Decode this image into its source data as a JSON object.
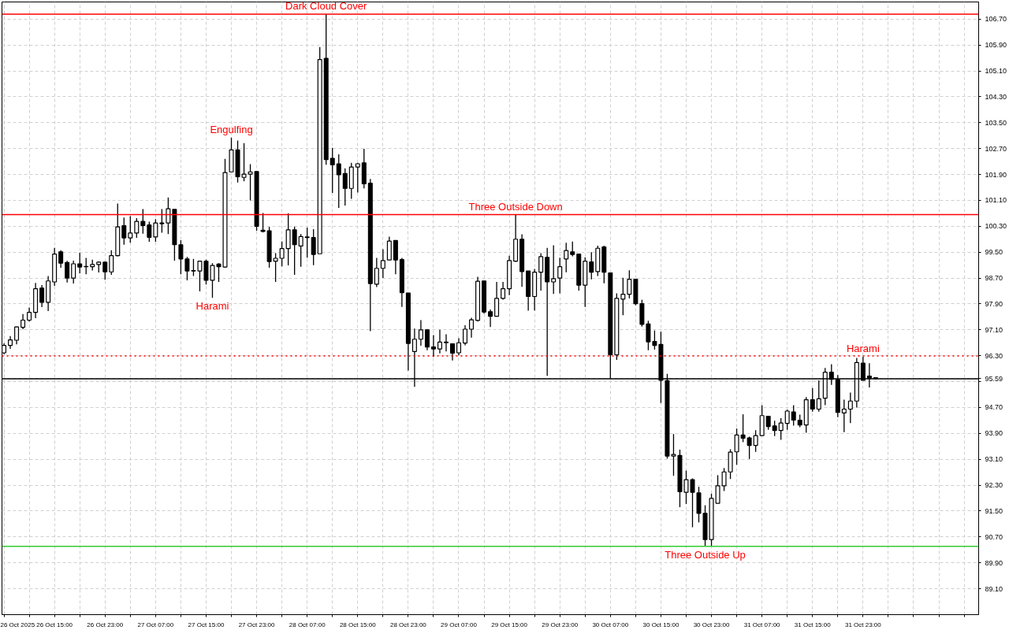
{
  "chart_data": {
    "type": "candlestick",
    "x": [
      "2025-10-26T07:00",
      "2025-10-26T08:00",
      "2025-10-26T09:00",
      "2025-10-26T10:00",
      "2025-10-26T11:00",
      "2025-10-26T12:00",
      "2025-10-26T13:00",
      "2025-10-26T14:00",
      "2025-10-26T15:00",
      "2025-10-26T16:00",
      "2025-10-26T17:00",
      "2025-10-26T18:00",
      "2025-10-26T19:00",
      "2025-10-26T20:00",
      "2025-10-26T21:00",
      "2025-10-26T22:00",
      "2025-10-26T23:00",
      "2025-10-27T00:00",
      "2025-10-27T01:00",
      "2025-10-27T02:00",
      "2025-10-27T03:00",
      "2025-10-27T04:00",
      "2025-10-27T05:00",
      "2025-10-27T06:00",
      "2025-10-27T07:00",
      "2025-10-27T08:00",
      "2025-10-27T09:00",
      "2025-10-27T10:00",
      "2025-10-27T11:00",
      "2025-10-27T12:00",
      "2025-10-27T13:00",
      "2025-10-27T14:00",
      "2025-10-27T15:00",
      "2025-10-27T16:00",
      "2025-10-27T17:00",
      "2025-10-27T18:00",
      "2025-10-27T19:00",
      "2025-10-27T20:00",
      "2025-10-27T21:00",
      "2025-10-27T22:00",
      "2025-10-27T23:00",
      "2025-10-28T00:00",
      "2025-10-28T01:00",
      "2025-10-28T02:00",
      "2025-10-28T03:00",
      "2025-10-28T04:00",
      "2025-10-28T05:00",
      "2025-10-28T06:00",
      "2025-10-28T07:00",
      "2025-10-28T08:00",
      "2025-10-28T09:00",
      "2025-10-28T10:00",
      "2025-10-28T11:00",
      "2025-10-28T12:00",
      "2025-10-28T13:00",
      "2025-10-28T14:00",
      "2025-10-28T15:00",
      "2025-10-28T16:00",
      "2025-10-28T17:00",
      "2025-10-28T18:00",
      "2025-10-28T19:00",
      "2025-10-28T20:00",
      "2025-10-28T21:00",
      "2025-10-28T22:00",
      "2025-10-28T23:00",
      "2025-10-29T00:00",
      "2025-10-29T01:00",
      "2025-10-29T02:00",
      "2025-10-29T03:00",
      "2025-10-29T04:00",
      "2025-10-29T05:00",
      "2025-10-29T06:00",
      "2025-10-29T07:00",
      "2025-10-29T08:00",
      "2025-10-29T09:00",
      "2025-10-29T10:00",
      "2025-10-29T11:00",
      "2025-10-29T12:00",
      "2025-10-29T13:00",
      "2025-10-29T14:00",
      "2025-10-29T15:00",
      "2025-10-29T16:00",
      "2025-10-29T17:00",
      "2025-10-29T18:00",
      "2025-10-29T19:00",
      "2025-10-29T20:00",
      "2025-10-29T21:00",
      "2025-10-29T22:00",
      "2025-10-29T23:00",
      "2025-10-30T00:00",
      "2025-10-30T01:00",
      "2025-10-30T02:00",
      "2025-10-30T03:00",
      "2025-10-30T04:00",
      "2025-10-30T05:00",
      "2025-10-30T06:00",
      "2025-10-30T07:00",
      "2025-10-30T08:00",
      "2025-10-30T09:00",
      "2025-10-30T10:00",
      "2025-10-30T11:00",
      "2025-10-30T12:00",
      "2025-10-30T13:00",
      "2025-10-30T14:00",
      "2025-10-30T15:00",
      "2025-10-30T16:00",
      "2025-10-30T17:00",
      "2025-10-30T18:00",
      "2025-10-30T19:00",
      "2025-10-30T20:00",
      "2025-10-30T21:00",
      "2025-10-30T22:00",
      "2025-10-30T23:00",
      "2025-10-31T00:00",
      "2025-10-31T01:00",
      "2025-10-31T02:00",
      "2025-10-31T03:00",
      "2025-10-31T04:00",
      "2025-10-31T05:00",
      "2025-10-31T06:00",
      "2025-10-31T07:00",
      "2025-10-31T08:00",
      "2025-10-31T09:00",
      "2025-10-31T10:00",
      "2025-10-31T11:00",
      "2025-10-31T12:00",
      "2025-10-31T13:00",
      "2025-10-31T14:00",
      "2025-10-31T15:00",
      "2025-10-31T16:00",
      "2025-10-31T17:00",
      "2025-10-31T18:00",
      "2025-10-31T19:00",
      "2025-10-31T20:00",
      "2025-10-31T21:00",
      "2025-10-31T22:00",
      "2025-10-31T23:00",
      "2025-11-01T00:00",
      "2025-11-01T01:00"
    ],
    "ohlc": [
      [
        96.39,
        96.68,
        96.35,
        96.62
      ],
      [
        96.62,
        96.91,
        96.51,
        96.79
      ],
      [
        96.78,
        97.2,
        96.65,
        97.19
      ],
      [
        97.18,
        97.59,
        97.12,
        97.4
      ],
      [
        97.4,
        97.79,
        97.36,
        97.64
      ],
      [
        97.64,
        98.55,
        97.46,
        98.37
      ],
      [
        98.39,
        98.48,
        97.8,
        97.95
      ],
      [
        97.95,
        98.76,
        97.68,
        98.61
      ],
      [
        98.58,
        99.63,
        98.46,
        99.44
      ],
      [
        99.51,
        99.56,
        99.02,
        99.16
      ],
      [
        99.18,
        99.23,
        98.56,
        98.7
      ],
      [
        98.7,
        99.24,
        98.53,
        99.14
      ],
      [
        99.14,
        99.48,
        98.84,
        99.04
      ],
      [
        99.05,
        99.32,
        98.82,
        99.06
      ],
      [
        99.05,
        99.27,
        98.93,
        99.12
      ],
      [
        99.12,
        99.21,
        98.87,
        99.19
      ],
      [
        99.19,
        99.21,
        98.65,
        98.89
      ],
      [
        98.89,
        99.56,
        98.8,
        99.39
      ],
      [
        99.39,
        101.0,
        99.37,
        100.28
      ],
      [
        100.32,
        100.57,
        99.73,
        99.94
      ],
      [
        99.94,
        100.61,
        99.79,
        100.09
      ],
      [
        100.09,
        100.55,
        99.94,
        100.45
      ],
      [
        100.45,
        100.83,
        100.07,
        100.32
      ],
      [
        100.34,
        100.44,
        99.82,
        99.96
      ],
      [
        99.97,
        100.52,
        99.82,
        100.4
      ],
      [
        100.38,
        100.83,
        100.1,
        100.4
      ],
      [
        100.4,
        101.19,
        100.06,
        100.84
      ],
      [
        100.82,
        100.82,
        99.24,
        99.73
      ],
      [
        99.73,
        99.87,
        98.82,
        99.29
      ],
      [
        99.29,
        99.35,
        98.63,
        98.92
      ],
      [
        98.92,
        99.29,
        98.76,
        98.93
      ],
      [
        98.92,
        99.22,
        98.29,
        99.22
      ],
      [
        99.22,
        99.27,
        98.5,
        98.63
      ],
      [
        98.63,
        99.16,
        98.09,
        99.09
      ],
      [
        99.13,
        99.16,
        98.58,
        99.05
      ],
      [
        99.04,
        102.38,
        99.02,
        101.96
      ],
      [
        101.98,
        103.04,
        101.98,
        102.66
      ],
      [
        102.66,
        102.95,
        101.65,
        101.83
      ],
      [
        101.81,
        102.87,
        101.69,
        101.91
      ],
      [
        101.91,
        102.22,
        101.1,
        101.98
      ],
      [
        101.99,
        101.99,
        100.16,
        100.3
      ],
      [
        100.18,
        100.71,
        100.11,
        100.14
      ],
      [
        100.16,
        100.28,
        99.02,
        99.21
      ],
      [
        99.22,
        99.47,
        98.58,
        99.31
      ],
      [
        99.31,
        99.83,
        99.06,
        99.61
      ],
      [
        99.61,
        100.7,
        99.09,
        100.19
      ],
      [
        100.19,
        100.29,
        98.8,
        99.73
      ],
      [
        99.69,
        100.06,
        99.05,
        99.98
      ],
      [
        99.95,
        100.26,
        99.33,
        99.97
      ],
      [
        99.95,
        100.21,
        99.1,
        99.43
      ],
      [
        99.45,
        105.84,
        99.45,
        105.45
      ],
      [
        105.49,
        106.85,
        102.2,
        102.36
      ],
      [
        102.4,
        102.72,
        101.33,
        102.2
      ],
      [
        102.23,
        102.52,
        100.87,
        101.89
      ],
      [
        101.93,
        102.09,
        100.94,
        101.47
      ],
      [
        101.47,
        102.26,
        101.15,
        102.13
      ],
      [
        102.13,
        102.26,
        101.34,
        102.23
      ],
      [
        102.26,
        102.69,
        101.47,
        101.61
      ],
      [
        101.63,
        101.76,
        97.06,
        98.53
      ],
      [
        98.51,
        99.32,
        98.42,
        99.0
      ],
      [
        99.0,
        99.59,
        98.7,
        99.24
      ],
      [
        99.26,
        99.98,
        99.26,
        99.84
      ],
      [
        99.86,
        99.86,
        98.82,
        99.26
      ],
      [
        99.27,
        99.32,
        97.81,
        98.25
      ],
      [
        98.24,
        98.24,
        95.84,
        96.68
      ],
      [
        96.43,
        97.14,
        95.34,
        96.81
      ],
      [
        96.81,
        97.4,
        96.61,
        97.1
      ],
      [
        97.1,
        97.12,
        96.47,
        96.57
      ],
      [
        96.57,
        96.94,
        96.26,
        96.51
      ],
      [
        96.51,
        97.1,
        96.37,
        96.72
      ],
      [
        96.7,
        96.96,
        96.43,
        96.72
      ],
      [
        96.67,
        96.67,
        96.15,
        96.38
      ],
      [
        96.39,
        96.84,
        96.31,
        96.7
      ],
      [
        96.69,
        97.24,
        96.62,
        97.12
      ],
      [
        97.12,
        97.47,
        96.86,
        97.41
      ],
      [
        97.39,
        98.74,
        97.36,
        98.6
      ],
      [
        98.61,
        98.61,
        97.6,
        97.65
      ],
      [
        97.66,
        97.73,
        97.19,
        97.52
      ],
      [
        97.52,
        98.58,
        97.52,
        98.07
      ],
      [
        98.07,
        98.58,
        98.03,
        98.37
      ],
      [
        98.37,
        99.39,
        98.17,
        99.24
      ],
      [
        99.22,
        100.66,
        99.2,
        99.9
      ],
      [
        99.9,
        100.05,
        98.43,
        98.9
      ],
      [
        98.92,
        98.92,
        97.69,
        98.13
      ],
      [
        98.13,
        98.98,
        97.7,
        98.88
      ],
      [
        98.88,
        99.47,
        98.31,
        99.36
      ],
      [
        99.34,
        99.63,
        95.68,
        98.58
      ],
      [
        98.58,
        99.71,
        98.21,
        98.68
      ],
      [
        98.7,
        99.33,
        98.23,
        99.05
      ],
      [
        99.29,
        99.79,
        98.88,
        99.55
      ],
      [
        99.51,
        99.83,
        99.37,
        99.43
      ],
      [
        99.44,
        99.44,
        98.31,
        98.48
      ],
      [
        98.48,
        99.34,
        97.81,
        99.22
      ],
      [
        99.2,
        99.5,
        98.66,
        98.88
      ],
      [
        98.9,
        99.7,
        98.76,
        99.62
      ],
      [
        99.66,
        99.7,
        98.54,
        98.88
      ],
      [
        98.86,
        98.86,
        95.6,
        96.33
      ],
      [
        96.33,
        98.23,
        96.17,
        98.07
      ],
      [
        98.05,
        98.71,
        97.55,
        98.2
      ],
      [
        98.2,
        98.94,
        98.07,
        98.66
      ],
      [
        98.66,
        98.66,
        97.86,
        97.91
      ],
      [
        97.91,
        98.03,
        97.2,
        97.27
      ],
      [
        97.28,
        97.38,
        96.47,
        96.73
      ],
      [
        96.74,
        97.08,
        96.49,
        96.62
      ],
      [
        96.65,
        97.04,
        94.84,
        95.54
      ],
      [
        95.53,
        95.74,
        93.12,
        93.2
      ],
      [
        93.2,
        93.88,
        92.59,
        93.25
      ],
      [
        93.22,
        93.4,
        91.62,
        92.1
      ],
      [
        92.08,
        92.75,
        91.72,
        92.47
      ],
      [
        92.47,
        92.51,
        91.0,
        92.08
      ],
      [
        92.06,
        92.25,
        91.15,
        91.43
      ],
      [
        91.43,
        91.68,
        90.41,
        90.62
      ],
      [
        90.62,
        92.04,
        90.41,
        91.89
      ],
      [
        91.74,
        92.61,
        91.74,
        92.28
      ],
      [
        92.28,
        92.83,
        92.12,
        92.71
      ],
      [
        92.71,
        93.41,
        92.49,
        93.32
      ],
      [
        93.33,
        94.05,
        92.93,
        93.85
      ],
      [
        93.85,
        94.49,
        93.63,
        93.75
      ],
      [
        93.76,
        93.8,
        93.11,
        93.53
      ],
      [
        93.53,
        94.0,
        93.33,
        93.83
      ],
      [
        93.83,
        94.77,
        93.83,
        94.45
      ],
      [
        94.43,
        94.43,
        94.01,
        94.11
      ],
      [
        94.13,
        94.29,
        93.82,
        93.99
      ],
      [
        93.99,
        94.37,
        93.7,
        94.22
      ],
      [
        94.21,
        94.63,
        94.01,
        94.59
      ],
      [
        94.56,
        94.77,
        94.14,
        94.31
      ],
      [
        94.31,
        94.48,
        94.09,
        94.16
      ],
      [
        94.16,
        95.02,
        93.92,
        94.94
      ],
      [
        94.94,
        95.3,
        94.57,
        94.65
      ],
      [
        94.65,
        95.54,
        94.57,
        94.97
      ],
      [
        94.99,
        95.92,
        94.77,
        95.79
      ],
      [
        95.79,
        96.04,
        95.4,
        95.57
      ],
      [
        95.56,
        95.7,
        94.4,
        94.55
      ],
      [
        94.53,
        94.94,
        93.94,
        94.65
      ],
      [
        94.65,
        95.16,
        94.22,
        94.9
      ],
      [
        94.9,
        96.23,
        94.7,
        96.09
      ],
      [
        96.07,
        96.27,
        95.54,
        95.54
      ],
      [
        95.67,
        96.07,
        95.32,
        95.61
      ],
      [
        95.62,
        95.63,
        95.59,
        95.59
      ]
    ],
    "xlim": [
      "2025-10-26T06:41",
      "2025-11-01T17:18"
    ],
    "xticks": [
      {
        "value": "2025-10-26T07:00",
        "label": "26 Oct 2025"
      },
      {
        "value": "2025-10-26T11:00",
        "label": null
      },
      {
        "value": "2025-10-26T15:00",
        "label": "26 Oct 15:00"
      },
      {
        "value": "2025-10-26T19:00",
        "label": null
      },
      {
        "value": "2025-10-26T23:00",
        "label": "26 Oct 23:00"
      },
      {
        "value": "2025-10-27T03:00",
        "label": null
      },
      {
        "value": "2025-10-27T07:00",
        "label": "27 Oct 07:00"
      },
      {
        "value": "2025-10-27T11:00",
        "label": null
      },
      {
        "value": "2025-10-27T15:00",
        "label": "27 Oct 15:00"
      },
      {
        "value": "2025-10-27T19:00",
        "label": null
      },
      {
        "value": "2025-10-27T23:00",
        "label": "27 Oct 23:00"
      },
      {
        "value": "2025-10-28T03:00",
        "label": null
      },
      {
        "value": "2025-10-28T07:00",
        "label": "28 Oct 07:00"
      },
      {
        "value": "2025-10-28T11:00",
        "label": null
      },
      {
        "value": "2025-10-28T15:00",
        "label": "28 Oct 15:00"
      },
      {
        "value": "2025-10-28T19:00",
        "label": null
      },
      {
        "value": "2025-10-28T23:00",
        "label": "28 Oct 23:00"
      },
      {
        "value": "2025-10-29T03:00",
        "label": null
      },
      {
        "value": "2025-10-29T07:00",
        "label": "29 Oct 07:00"
      },
      {
        "value": "2025-10-29T11:00",
        "label": null
      },
      {
        "value": "2025-10-29T15:00",
        "label": "29 Oct 15:00"
      },
      {
        "value": "2025-10-29T19:00",
        "label": null
      },
      {
        "value": "2025-10-29T23:00",
        "label": "29 Oct 23:00"
      },
      {
        "value": "2025-10-30T03:00",
        "label": null
      },
      {
        "value": "2025-10-30T07:00",
        "label": "30 Oct 07:00"
      },
      {
        "value": "2025-10-30T11:00",
        "label": null
      },
      {
        "value": "2025-10-30T15:00",
        "label": "30 Oct 15:00"
      },
      {
        "value": "2025-10-30T19:00",
        "label": null
      },
      {
        "value": "2025-10-30T23:00",
        "label": "30 Oct 23:00"
      },
      {
        "value": "2025-10-31T03:00",
        "label": null
      },
      {
        "value": "2025-10-31T07:00",
        "label": "31 Oct 07:00"
      },
      {
        "value": "2025-10-31T11:00",
        "label": null
      },
      {
        "value": "2025-10-31T15:00",
        "label": "31 Oct 15:00"
      },
      {
        "value": "2025-10-31T19:00",
        "label": null
      },
      {
        "value": "2025-10-31T23:00",
        "label": "31 Oct 23:00"
      },
      {
        "value": "2025-11-01T03:00",
        "label": null
      },
      {
        "value": "2025-11-01T07:00",
        "label": null
      },
      {
        "value": "2025-11-01T11:00",
        "label": null
      },
      {
        "value": "2025-11-01T15:00",
        "label": null
      }
    ],
    "ylim": [
      88.3,
      107.23
    ],
    "yticks": [
      {
        "value": 89.1,
        "label": "89.10"
      },
      {
        "value": 89.9,
        "label": "89.90"
      },
      {
        "value": 90.7,
        "label": "90.70"
      },
      {
        "value": 91.5,
        "label": "91.50"
      },
      {
        "value": 92.3,
        "label": "92.30"
      },
      {
        "value": 93.1,
        "label": "93.10"
      },
      {
        "value": 93.9,
        "label": "93.90"
      },
      {
        "value": 94.7,
        "label": "94.70"
      },
      {
        "value": 95.5,
        "label": null
      },
      {
        "value": 96.3,
        "label": "96.30"
      },
      {
        "value": 97.1,
        "label": "97.10"
      },
      {
        "value": 97.9,
        "label": "97.90"
      },
      {
        "value": 98.7,
        "label": "98.70"
      },
      {
        "value": 99.5,
        "label": "99.50"
      },
      {
        "value": 100.3,
        "label": "100.30"
      },
      {
        "value": 101.1,
        "label": "101.10"
      },
      {
        "value": 101.9,
        "label": "101.90"
      },
      {
        "value": 102.7,
        "label": "102.70"
      },
      {
        "value": 103.5,
        "label": "103.50"
      },
      {
        "value": 104.3,
        "label": "104.30"
      },
      {
        "value": 105.1,
        "label": "105.10"
      },
      {
        "value": 105.9,
        "label": "105.90"
      },
      {
        "value": 106.7,
        "label": "106.70"
      }
    ],
    "grid": true,
    "ref_lines": [
      {
        "axis": "y",
        "value": 106.85,
        "color": "#ff0000",
        "line_style": "solid"
      },
      {
        "axis": "y",
        "value": 100.66,
        "color": "#ff0000",
        "line_style": "solid"
      },
      {
        "axis": "y",
        "value": 90.41,
        "color": "#32cd32",
        "line_style": "solid"
      },
      {
        "axis": "y",
        "value": 96.29,
        "color": "#ff0000",
        "line_style": "dotted"
      },
      {
        "axis": "y",
        "value": 95.59,
        "label": "95.59",
        "color": "#000000",
        "line_style": "solid"
      }
    ],
    "annotations": [
      {
        "text": "Dark Cloud Cover",
        "x": "2025-10-28T10:00",
        "y": 106.85
      },
      {
        "text": "Engulfing",
        "x": "2025-10-27T19:00",
        "y": 103.04
      },
      {
        "text": "Harami",
        "x": "2025-10-27T16:00",
        "y": 98.09
      },
      {
        "text": "Three Outside Down",
        "x": "2025-10-29T16:00",
        "y": 100.66
      },
      {
        "text": "Three Outside Up",
        "x": "2025-10-30T22:00",
        "y": 90.41
      },
      {
        "text": "Harami",
        "x": "2025-10-31T23:00",
        "y": 96.27
      }
    ]
  }
}
